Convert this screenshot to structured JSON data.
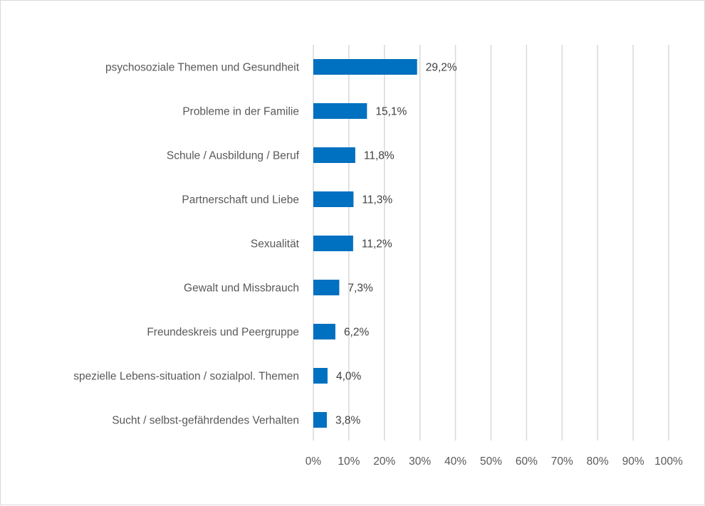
{
  "chart_data": {
    "type": "bar",
    "orientation": "horizontal",
    "title": "",
    "xlabel": "",
    "ylabel": "",
    "xlim": [
      0,
      100
    ],
    "grid": true,
    "legend": "none",
    "bar_color": "#0070C0",
    "categories": [
      "psychosoziale Themen und Gesundheit",
      "Probleme in der Familie",
      "Schule / Ausbildung / Beruf",
      "Partnerschaft und Liebe",
      "Sexualität",
      "Gewalt und Missbrauch",
      "Freundeskreis und Peergruppe",
      "spezielle Lebens-situation / sozialpol. Themen",
      "Sucht / selbst-gefährdendes Verhalten"
    ],
    "values": [
      29.2,
      15.1,
      11.8,
      11.3,
      11.2,
      7.3,
      6.2,
      4.0,
      3.8
    ],
    "value_labels": [
      "29,2%",
      "15,1%",
      "11,8%",
      "11,3%",
      "11,2%",
      "7,3%",
      "6,2%",
      "4,0%",
      "3,8%"
    ],
    "x_ticks": [
      0,
      10,
      20,
      30,
      40,
      50,
      60,
      70,
      80,
      90,
      100
    ],
    "x_tick_labels": [
      "0%",
      "10%",
      "20%",
      "30%",
      "40%",
      "50%",
      "60%",
      "70%",
      "80%",
      "90%",
      "100%"
    ]
  }
}
